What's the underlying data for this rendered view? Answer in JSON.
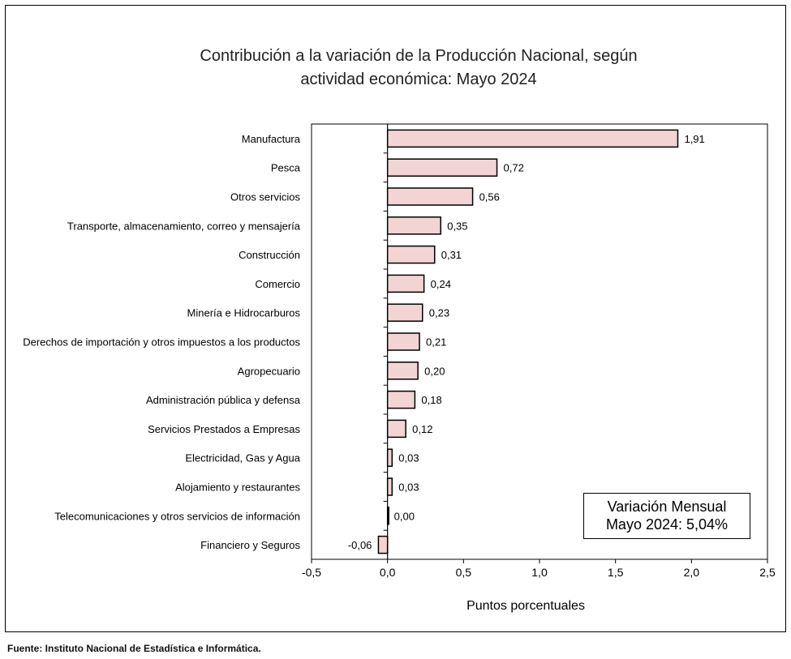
{
  "chart_data": {
    "type": "bar",
    "orientation": "horizontal",
    "title": [
      "Contribución a la variación de la Producción Nacional, según",
      "actividad económica: Mayo 2024"
    ],
    "xlabel": "Puntos porcentuales",
    "xlim": [
      -0.5,
      2.5
    ],
    "xticks": [
      -0.5,
      0.0,
      0.5,
      1.0,
      1.5,
      2.0,
      2.5
    ],
    "xtick_labels": [
      "-0,5",
      "0,0",
      "0,5",
      "1,0",
      "1,5",
      "2,0",
      "2,5"
    ],
    "categories": [
      "Manufactura",
      "Pesca",
      "Otros servicios",
      "Transporte, almacenamiento, correo y mensajería",
      "Construcción",
      "Comercio",
      "Minería e Hidrocarburos",
      "Derechos de importación y otros impuestos a los productos",
      "Agropecuario",
      "Administración pública y defensa",
      "Servicios Prestados a Empresas",
      "Electricidad, Gas y Agua",
      "Alojamiento y restaurantes",
      "Telecomunicaciones y otros servicios de información",
      "Financiero y Seguros"
    ],
    "values": [
      1.91,
      0.72,
      0.56,
      0.35,
      0.31,
      0.24,
      0.23,
      0.21,
      0.2,
      0.18,
      0.12,
      0.03,
      0.03,
      0.0,
      -0.06
    ],
    "value_labels": [
      "1,91",
      "0,72",
      "0,56",
      "0,35",
      "0,31",
      "0,24",
      "0,23",
      "0,21",
      "0,20",
      "0,18",
      "0,12",
      "0,03",
      "0,03",
      "0,00",
      "-0,06"
    ],
    "bar_color": "#f2d4d4",
    "bar_edge_color": "#000000",
    "grid": false,
    "annotation": [
      "Variación Mensual",
      "Mayo 2024: 5,04%"
    ]
  },
  "source": "Fuente:  Instituto Nacional de Estadística e Informática."
}
